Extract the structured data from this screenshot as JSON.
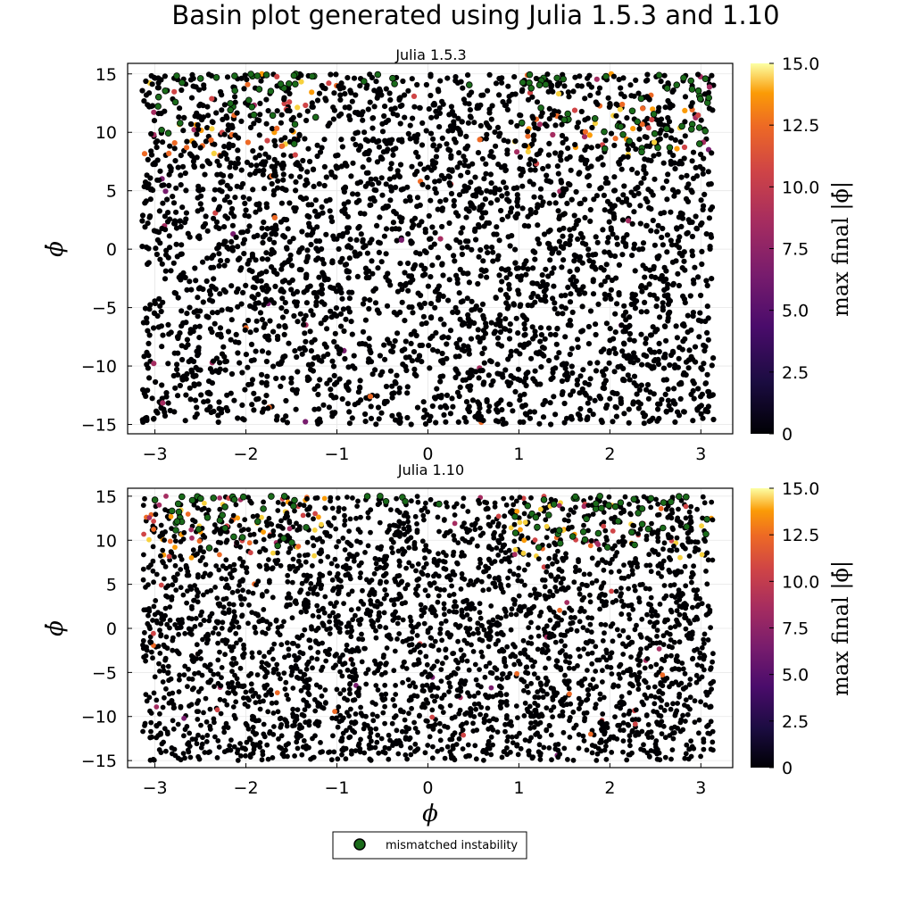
{
  "figure": {
    "title": "Basin plot generated using Julia 1.5.3 and 1.10",
    "legend": {
      "label": "mismatched instability",
      "marker_color": "#1a6b1a"
    }
  },
  "chart_data": [
    {
      "type": "scatter",
      "title": "Julia 1.5.3",
      "xlabel": "ϕ",
      "ylabel": "ϕ̇",
      "xlim": [
        -3.3,
        3.35
      ],
      "ylim": [
        -15.8,
        15.9
      ],
      "xticks": [
        -3,
        -2,
        -1,
        0,
        1,
        2,
        3
      ],
      "yticks": [
        -15,
        -10,
        -5,
        0,
        5,
        10,
        15
      ],
      "xticklabels": [
        "−3",
        "−2",
        "−1",
        "0",
        "1",
        "2",
        "3"
      ],
      "yticklabels": [
        "−15",
        "−10",
        "−5",
        "0",
        "5",
        "10",
        "15"
      ],
      "grid": true,
      "points_domain": {
        "x": [
          -3.14,
          3.14
        ],
        "y": [
          -15,
          15
        ]
      },
      "approx_point_count": 6000,
      "colorbar": {
        "label": "max final |ϕ̇|",
        "range": [
          0,
          15
        ],
        "ticks": [
          "0",
          "2.5",
          "5.0",
          "7.5",
          "10.0",
          "12.5",
          "15.0"
        ],
        "colormap": "inferno"
      },
      "series": [
        {
          "name": "basin samples",
          "description": "points colored by max final |ϕ̇|, mostly 0 (black)"
        },
        {
          "name": "mismatched instability",
          "color": "#1a6b1a",
          "clusters": [
            {
              "x_range": [
                -3.0,
                -1.2
              ],
              "y_range": [
                9,
                15
              ]
            },
            {
              "x_range": [
                1.0,
                3.1
              ],
              "y_range": [
                8,
                15
              ]
            },
            {
              "x_range": [
                -1.0,
                0.5
              ],
              "y_range": [
                14,
                15
              ]
            }
          ]
        }
      ]
    },
    {
      "type": "scatter",
      "title": "Julia 1.10",
      "xlabel": "ϕ",
      "ylabel": "ϕ̇",
      "xlim": [
        -3.3,
        3.35
      ],
      "ylim": [
        -15.8,
        15.9
      ],
      "xticks": [
        -3,
        -2,
        -1,
        0,
        1,
        2,
        3
      ],
      "yticks": [
        -15,
        -10,
        -5,
        0,
        5,
        10,
        15
      ],
      "xticklabels": [
        "−3",
        "−2",
        "−1",
        "0",
        "1",
        "2",
        "3"
      ],
      "yticklabels": [
        "−15",
        "−10",
        "−5",
        "0",
        "5",
        "10",
        "15"
      ],
      "grid": true,
      "points_domain": {
        "x": [
          -3.14,
          3.14
        ],
        "y": [
          -15,
          15
        ]
      },
      "approx_point_count": 6000,
      "colorbar": {
        "label": "max final |ϕ̇|",
        "range": [
          0,
          15
        ],
        "ticks": [
          "0",
          "2.5",
          "5.0",
          "7.5",
          "10.0",
          "12.5",
          "15.0"
        ],
        "colormap": "inferno"
      },
      "series": [
        {
          "name": "basin samples",
          "description": "points colored by max final |ϕ̇|, mostly 0 (black)"
        },
        {
          "name": "mismatched instability",
          "color": "#1a6b1a",
          "clusters": [
            {
              "x_range": [
                -3.0,
                -1.3
              ],
              "y_range": [
                9,
                15
              ]
            },
            {
              "x_range": [
                0.9,
                3.1
              ],
              "y_range": [
                9,
                15
              ]
            },
            {
              "x_range": [
                -1.0,
                0.6
              ],
              "y_range": [
                14,
                15
              ]
            }
          ]
        }
      ]
    }
  ]
}
